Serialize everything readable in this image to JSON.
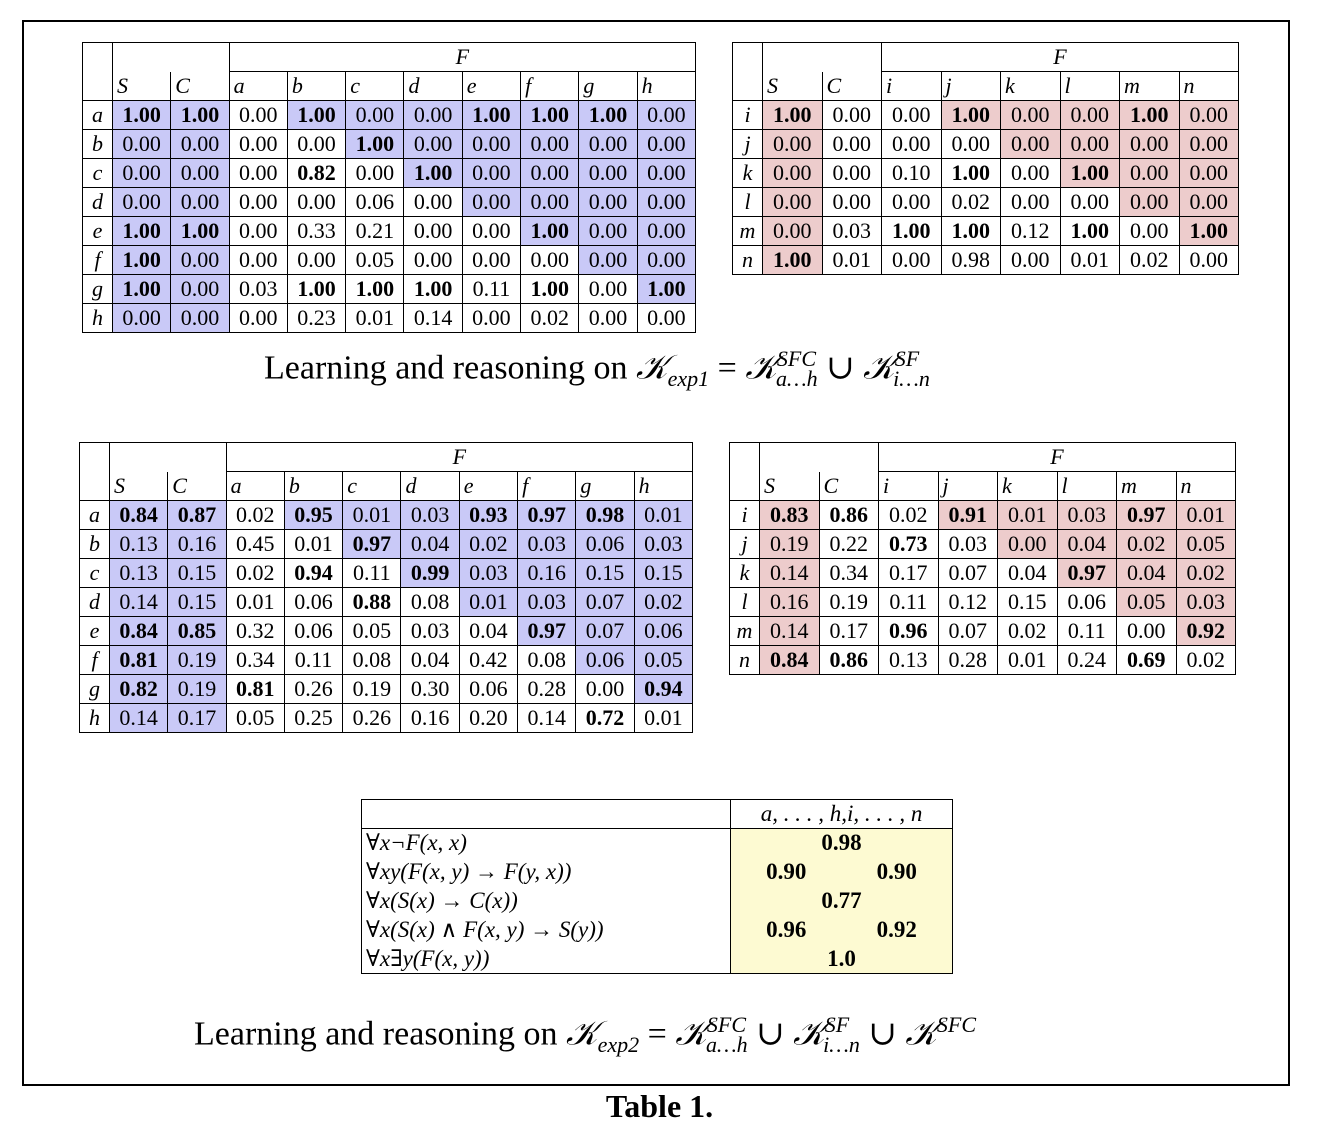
{
  "tables": [
    {
      "id": "t1",
      "group_label": "F",
      "col_labels": [
        "S",
        "C",
        "a",
        "b",
        "c",
        "d",
        "e",
        "f",
        "g",
        "h"
      ],
      "row_labels": [
        "a",
        "b",
        "c",
        "d",
        "e",
        "f",
        "g",
        "h"
      ],
      "values": [
        [
          "1.00",
          "1.00",
          "0.00",
          "1.00",
          "0.00",
          "0.00",
          "1.00",
          "1.00",
          "1.00",
          "0.00"
        ],
        [
          "0.00",
          "0.00",
          "0.00",
          "0.00",
          "1.00",
          "0.00",
          "0.00",
          "0.00",
          "0.00",
          "0.00"
        ],
        [
          "0.00",
          "0.00",
          "0.00",
          "0.82",
          "0.00",
          "1.00",
          "0.00",
          "0.00",
          "0.00",
          "0.00"
        ],
        [
          "0.00",
          "0.00",
          "0.00",
          "0.00",
          "0.06",
          "0.00",
          "0.00",
          "0.00",
          "0.00",
          "0.00"
        ],
        [
          "1.00",
          "1.00",
          "0.00",
          "0.33",
          "0.21",
          "0.00",
          "0.00",
          "1.00",
          "0.00",
          "0.00"
        ],
        [
          "1.00",
          "0.00",
          "0.00",
          "0.00",
          "0.05",
          "0.00",
          "0.00",
          "0.00",
          "0.00",
          "0.00"
        ],
        [
          "1.00",
          "0.00",
          "0.03",
          "1.00",
          "1.00",
          "1.00",
          "0.11",
          "1.00",
          "0.00",
          "1.00"
        ],
        [
          "0.00",
          "0.00",
          "0.00",
          "0.23",
          "0.01",
          "0.14",
          "0.00",
          "0.02",
          "0.00",
          "0.00"
        ]
      ],
      "bold": [
        [
          1,
          1,
          0,
          1,
          0,
          0,
          1,
          1,
          1,
          0
        ],
        [
          0,
          0,
          0,
          0,
          1,
          0,
          0,
          0,
          0,
          0
        ],
        [
          0,
          0,
          0,
          1,
          0,
          1,
          0,
          0,
          0,
          0
        ],
        [
          0,
          0,
          0,
          0,
          0,
          0,
          0,
          0,
          0,
          0
        ],
        [
          1,
          1,
          0,
          0,
          0,
          0,
          0,
          1,
          0,
          0
        ],
        [
          1,
          0,
          0,
          0,
          0,
          0,
          0,
          0,
          0,
          0
        ],
        [
          1,
          0,
          0,
          1,
          1,
          1,
          0,
          1,
          0,
          1
        ],
        [
          0,
          0,
          0,
          0,
          0,
          0,
          0,
          0,
          0,
          0
        ]
      ],
      "highlight": [
        [
          1,
          1,
          0,
          1,
          1,
          1,
          1,
          1,
          1,
          1
        ],
        [
          1,
          1,
          0,
          0,
          1,
          1,
          1,
          1,
          1,
          1
        ],
        [
          1,
          1,
          0,
          0,
          0,
          1,
          1,
          1,
          1,
          1
        ],
        [
          1,
          1,
          0,
          0,
          0,
          0,
          1,
          1,
          1,
          1
        ],
        [
          1,
          1,
          0,
          0,
          0,
          0,
          0,
          1,
          1,
          1
        ],
        [
          1,
          1,
          0,
          0,
          0,
          0,
          0,
          0,
          1,
          1
        ],
        [
          1,
          1,
          0,
          0,
          0,
          0,
          0,
          0,
          0,
          1
        ],
        [
          1,
          1,
          0,
          0,
          0,
          0,
          0,
          0,
          0,
          0
        ]
      ],
      "highlight_color": "#c9c9f7"
    },
    {
      "id": "t2",
      "group_label": "F",
      "col_labels": [
        "S",
        "C",
        "i",
        "j",
        "k",
        "l",
        "m",
        "n"
      ],
      "row_labels": [
        "i",
        "j",
        "k",
        "l",
        "m",
        "n"
      ],
      "values": [
        [
          "1.00",
          "0.00",
          "0.00",
          "1.00",
          "0.00",
          "0.00",
          "1.00",
          "0.00"
        ],
        [
          "0.00",
          "0.00",
          "0.00",
          "0.00",
          "0.00",
          "0.00",
          "0.00",
          "0.00"
        ],
        [
          "0.00",
          "0.00",
          "0.10",
          "1.00",
          "0.00",
          "1.00",
          "0.00",
          "0.00"
        ],
        [
          "0.00",
          "0.00",
          "0.00",
          "0.02",
          "0.00",
          "0.00",
          "0.00",
          "0.00"
        ],
        [
          "0.00",
          "0.03",
          "1.00",
          "1.00",
          "0.12",
          "1.00",
          "0.00",
          "1.00"
        ],
        [
          "1.00",
          "0.01",
          "0.00",
          "0.98",
          "0.00",
          "0.01",
          "0.02",
          "0.00"
        ]
      ],
      "bold": [
        [
          1,
          0,
          0,
          1,
          0,
          0,
          1,
          0
        ],
        [
          0,
          0,
          0,
          0,
          0,
          0,
          0,
          0
        ],
        [
          0,
          0,
          0,
          1,
          0,
          1,
          0,
          0
        ],
        [
          0,
          0,
          0,
          0,
          0,
          0,
          0,
          0
        ],
        [
          0,
          0,
          1,
          1,
          0,
          1,
          0,
          1
        ],
        [
          1,
          0,
          0,
          0,
          0,
          0,
          0,
          0
        ]
      ],
      "highlight": [
        [
          1,
          0,
          0,
          1,
          1,
          1,
          1,
          1
        ],
        [
          1,
          0,
          0,
          0,
          1,
          1,
          1,
          1
        ],
        [
          1,
          0,
          0,
          0,
          0,
          1,
          1,
          1
        ],
        [
          1,
          0,
          0,
          0,
          0,
          0,
          1,
          1
        ],
        [
          1,
          0,
          0,
          0,
          0,
          0,
          0,
          1
        ],
        [
          1,
          0,
          0,
          0,
          0,
          0,
          0,
          0
        ]
      ],
      "highlight_color": "#edcccc"
    },
    {
      "id": "t3",
      "group_label": "F",
      "col_labels": [
        "S",
        "C",
        "a",
        "b",
        "c",
        "d",
        "e",
        "f",
        "g",
        "h"
      ],
      "row_labels": [
        "a",
        "b",
        "c",
        "d",
        "e",
        "f",
        "g",
        "h"
      ],
      "values": [
        [
          "0.84",
          "0.87",
          "0.02",
          "0.95",
          "0.01",
          "0.03",
          "0.93",
          "0.97",
          "0.98",
          "0.01"
        ],
        [
          "0.13",
          "0.16",
          "0.45",
          "0.01",
          "0.97",
          "0.04",
          "0.02",
          "0.03",
          "0.06",
          "0.03"
        ],
        [
          "0.13",
          "0.15",
          "0.02",
          "0.94",
          "0.11",
          "0.99",
          "0.03",
          "0.16",
          "0.15",
          "0.15"
        ],
        [
          "0.14",
          "0.15",
          "0.01",
          "0.06",
          "0.88",
          "0.08",
          "0.01",
          "0.03",
          "0.07",
          "0.02"
        ],
        [
          "0.84",
          "0.85",
          "0.32",
          "0.06",
          "0.05",
          "0.03",
          "0.04",
          "0.97",
          "0.07",
          "0.06"
        ],
        [
          "0.81",
          "0.19",
          "0.34",
          "0.11",
          "0.08",
          "0.04",
          "0.42",
          "0.08",
          "0.06",
          "0.05"
        ],
        [
          "0.82",
          "0.19",
          "0.81",
          "0.26",
          "0.19",
          "0.30",
          "0.06",
          "0.28",
          "0.00",
          "0.94"
        ],
        [
          "0.14",
          "0.17",
          "0.05",
          "0.25",
          "0.26",
          "0.16",
          "0.20",
          "0.14",
          "0.72",
          "0.01"
        ]
      ],
      "bold": [
        [
          1,
          1,
          0,
          1,
          0,
          0,
          1,
          1,
          1,
          0
        ],
        [
          0,
          0,
          0,
          0,
          1,
          0,
          0,
          0,
          0,
          0
        ],
        [
          0,
          0,
          0,
          1,
          0,
          1,
          0,
          0,
          0,
          0
        ],
        [
          0,
          0,
          0,
          0,
          1,
          0,
          0,
          0,
          0,
          0
        ],
        [
          1,
          1,
          0,
          0,
          0,
          0,
          0,
          1,
          0,
          0
        ],
        [
          1,
          0,
          0,
          0,
          0,
          0,
          0,
          0,
          0,
          0
        ],
        [
          1,
          0,
          1,
          0,
          0,
          0,
          0,
          0,
          0,
          1
        ],
        [
          0,
          0,
          0,
          0,
          0,
          0,
          0,
          0,
          1,
          0
        ]
      ],
      "highlight": [
        [
          1,
          1,
          0,
          1,
          1,
          1,
          1,
          1,
          1,
          1
        ],
        [
          1,
          1,
          0,
          0,
          1,
          1,
          1,
          1,
          1,
          1
        ],
        [
          1,
          1,
          0,
          0,
          0,
          1,
          1,
          1,
          1,
          1
        ],
        [
          1,
          1,
          0,
          0,
          0,
          0,
          1,
          1,
          1,
          1
        ],
        [
          1,
          1,
          0,
          0,
          0,
          0,
          0,
          1,
          1,
          1
        ],
        [
          1,
          1,
          0,
          0,
          0,
          0,
          0,
          0,
          1,
          1
        ],
        [
          1,
          1,
          0,
          0,
          0,
          0,
          0,
          0,
          0,
          1
        ],
        [
          1,
          1,
          0,
          0,
          0,
          0,
          0,
          0,
          0,
          0
        ]
      ],
      "highlight_color": "#c9c9f7"
    },
    {
      "id": "t4",
      "group_label": "F",
      "col_labels": [
        "S",
        "C",
        "i",
        "j",
        "k",
        "l",
        "m",
        "n"
      ],
      "row_labels": [
        "i",
        "j",
        "k",
        "l",
        "m",
        "n"
      ],
      "values": [
        [
          "0.83",
          "0.86",
          "0.02",
          "0.91",
          "0.01",
          "0.03",
          "0.97",
          "0.01"
        ],
        [
          "0.19",
          "0.22",
          "0.73",
          "0.03",
          "0.00",
          "0.04",
          "0.02",
          "0.05"
        ],
        [
          "0.14",
          "0.34",
          "0.17",
          "0.07",
          "0.04",
          "0.97",
          "0.04",
          "0.02"
        ],
        [
          "0.16",
          "0.19",
          "0.11",
          "0.12",
          "0.15",
          "0.06",
          "0.05",
          "0.03"
        ],
        [
          "0.14",
          "0.17",
          "0.96",
          "0.07",
          "0.02",
          "0.11",
          "0.00",
          "0.92"
        ],
        [
          "0.84",
          "0.86",
          "0.13",
          "0.28",
          "0.01",
          "0.24",
          "0.69",
          "0.02"
        ]
      ],
      "bold": [
        [
          1,
          1,
          0,
          1,
          0,
          0,
          1,
          0
        ],
        [
          0,
          0,
          1,
          0,
          0,
          0,
          0,
          0
        ],
        [
          0,
          0,
          0,
          0,
          0,
          1,
          0,
          0
        ],
        [
          0,
          0,
          0,
          0,
          0,
          0,
          0,
          0
        ],
        [
          0,
          0,
          1,
          0,
          0,
          0,
          0,
          1
        ],
        [
          1,
          1,
          0,
          0,
          0,
          0,
          1,
          0
        ]
      ],
      "highlight": [
        [
          1,
          0,
          0,
          1,
          1,
          1,
          1,
          1
        ],
        [
          1,
          0,
          0,
          0,
          1,
          1,
          1,
          1
        ],
        [
          1,
          0,
          0,
          0,
          0,
          1,
          1,
          1
        ],
        [
          1,
          0,
          0,
          0,
          0,
          0,
          1,
          1
        ],
        [
          1,
          0,
          0,
          0,
          0,
          0,
          0,
          1
        ],
        [
          1,
          0,
          0,
          0,
          0,
          0,
          0,
          0
        ]
      ],
      "highlight_color": "#edcccc"
    }
  ],
  "captions": {
    "exp1": {
      "prefix": "Learning and reasoning on ",
      "k": "𝒦",
      "sub1": "exp1",
      "eq": " = ",
      "sup2": "SFC",
      "sub2": "a…h",
      "cup": " ∪ ",
      "sup3": "SF",
      "sub3": "i…n"
    },
    "exp2": {
      "prefix": "Learning and reasoning on ",
      "k": "𝒦",
      "sub1": "exp2",
      "eq": " = ",
      "sup2": "SFC",
      "sub2": "a…h",
      "cup": " ∪ ",
      "sup3": "SF",
      "sub3": "i…n",
      "cup2": " ∪ ",
      "sup4": "SFC"
    }
  },
  "axioms": {
    "header": "a, . . . , h,i, . . . , n",
    "rows": [
      {
        "formula": "∀x¬F(x, x)",
        "values": [
          "0.98"
        ]
      },
      {
        "formula": "∀xy(F(x, y) → F(y, x))",
        "values": [
          "0.90",
          "0.90"
        ]
      },
      {
        "formula": "∀x(S(x) → C(x))",
        "values": [
          "0.77"
        ]
      },
      {
        "formula": "∀x(S(x) ∧ F(x, y) → S(y))",
        "values": [
          "0.96",
          "0.92"
        ]
      },
      {
        "formula": "∀x∃y(F(x, y))",
        "values": [
          "1.0"
        ]
      }
    ],
    "fill_color": "#fdfad2"
  },
  "table_title": "Table 1."
}
